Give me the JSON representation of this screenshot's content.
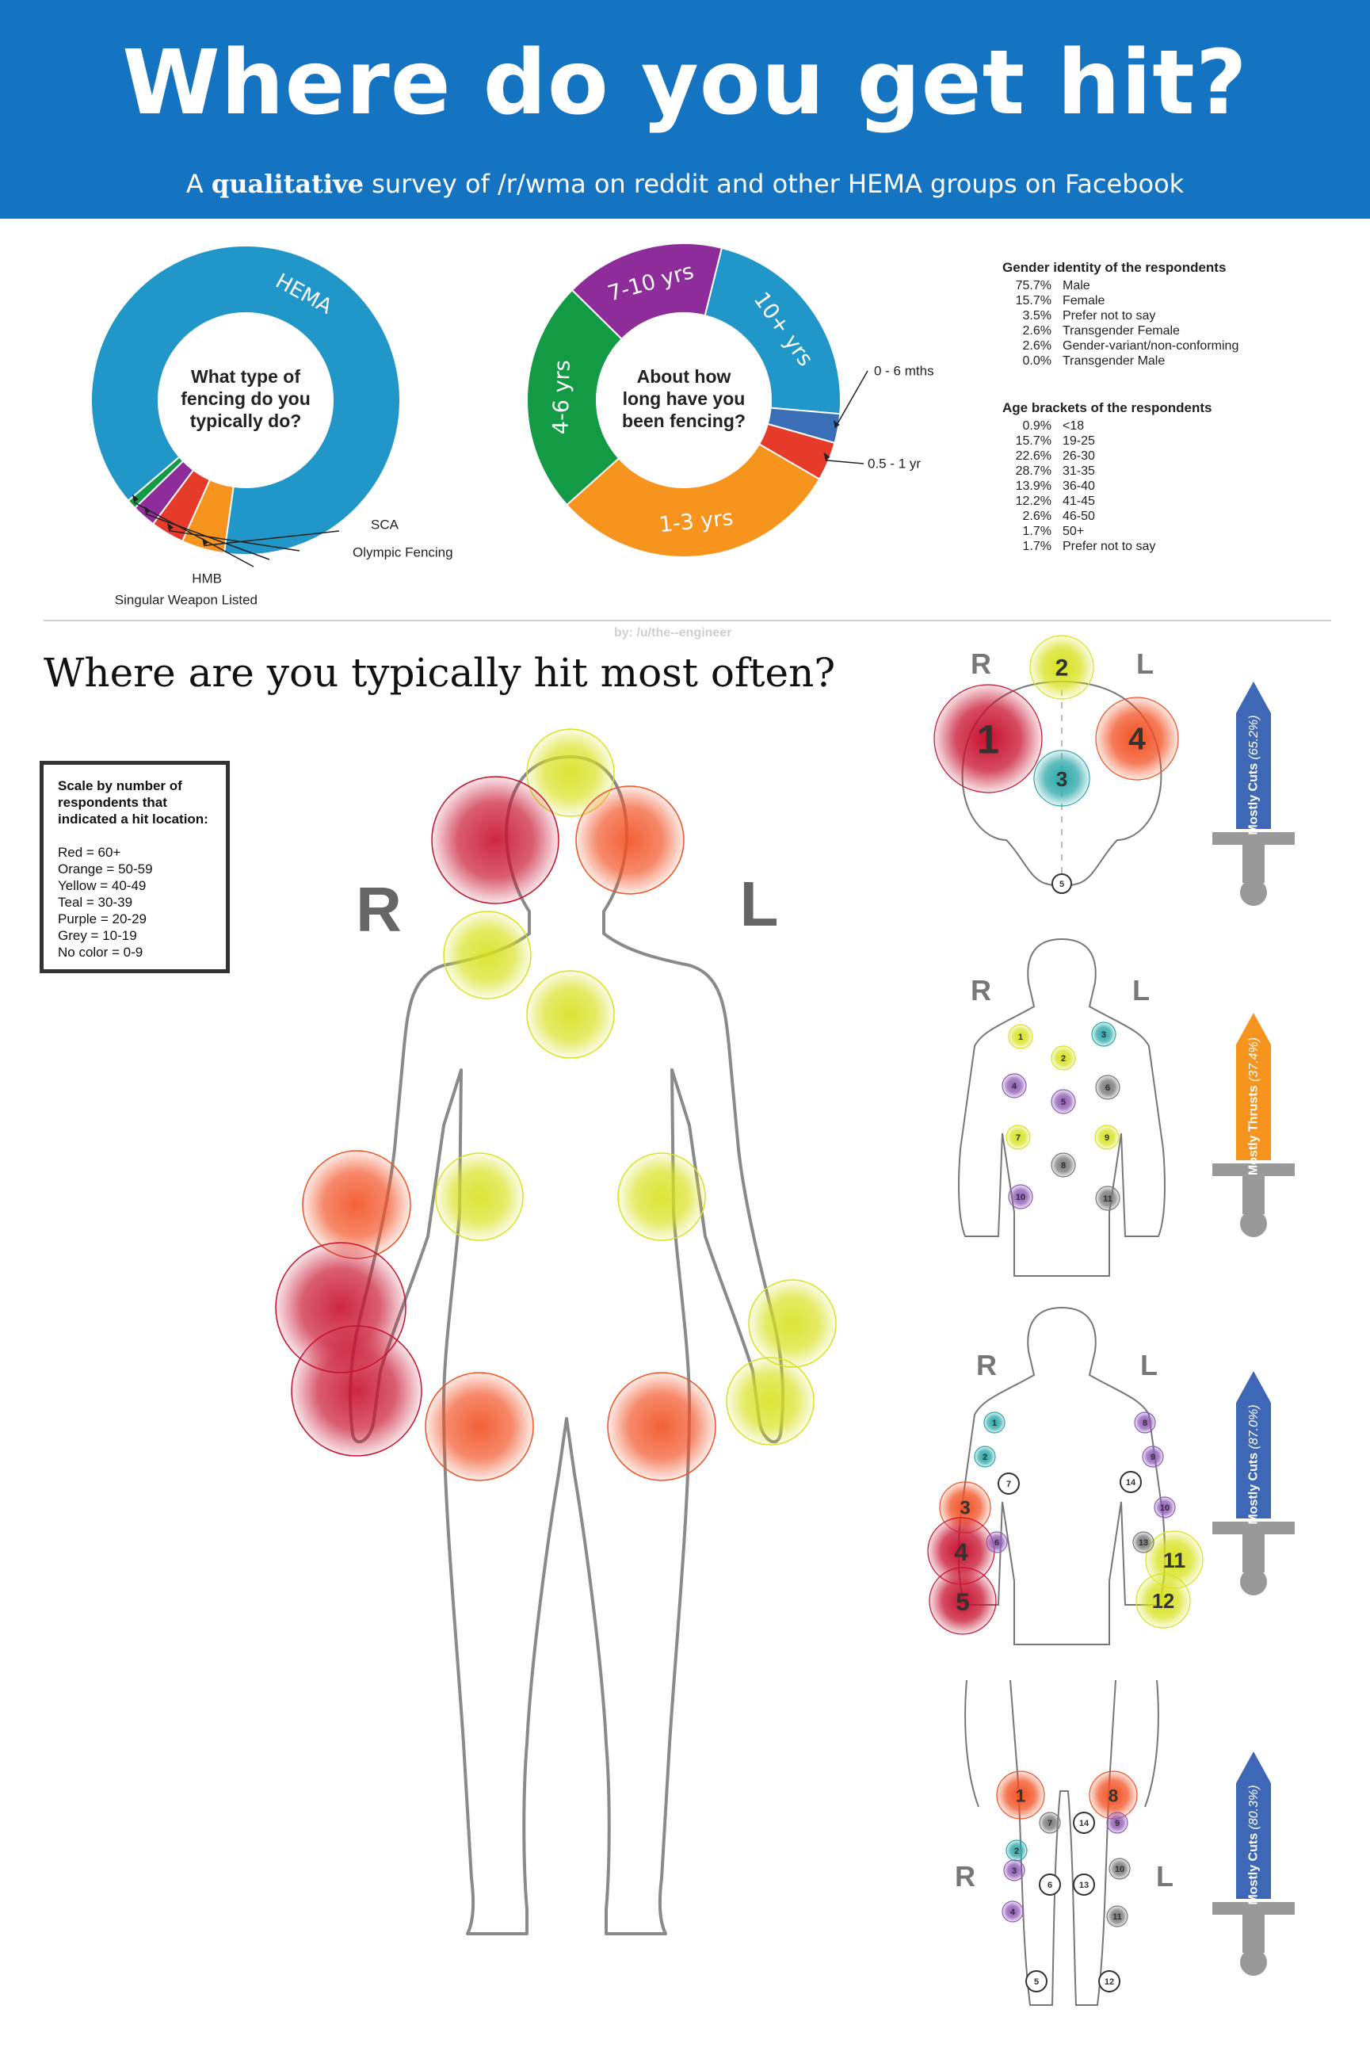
{
  "header": {
    "title": "Where do you get hit?",
    "subtitle_prefix": "A ",
    "subtitle_emphasis": "qualitative",
    "subtitle_rest": " survey of /r/wma on reddit and other HEMA groups on Facebook",
    "color": "#1574c2"
  },
  "chart_data": [
    {
      "type": "pie",
      "variant": "donut",
      "center_label": [
        "What type of",
        "fencing do you",
        "typically do?"
      ],
      "slices": [
        {
          "label": "HEMA",
          "value": 88.5,
          "color": "#2196c8"
        },
        {
          "label": "SCA",
          "value": 4.5,
          "color": "#f7941d"
        },
        {
          "label": "Olympic Fencing",
          "value": 3.5,
          "color": "#e63a2a"
        },
        {
          "label": "Singular Weapon Listed",
          "value": 2.5,
          "color": "#8e2c9a"
        },
        {
          "label": "HMB",
          "value": 1.0,
          "color": "#139a45"
        }
      ]
    },
    {
      "type": "pie",
      "variant": "donut",
      "center_label": [
        "About how",
        "long have you",
        "been fencing?"
      ],
      "slices": [
        {
          "label": "10+ yrs",
          "value": 22.5,
          "color": "#2196c8"
        },
        {
          "label": "0 - 6 mths",
          "value": 3.0,
          "color": "#3a6fb7"
        },
        {
          "label": "0.5 - 1 yr",
          "value": 4.0,
          "color": "#e63a2a"
        },
        {
          "label": "1-3 yrs",
          "value": 30.0,
          "color": "#f7941d"
        },
        {
          "label": "4-6 yrs",
          "value": 24.0,
          "color": "#139a45"
        },
        {
          "label": "7-10 yrs",
          "value": 16.5,
          "color": "#8e2c9a"
        }
      ]
    },
    {
      "type": "table",
      "title": "Gender identity of the respondents",
      "rows": [
        {
          "pct": "75.7%",
          "label": "Male"
        },
        {
          "pct": "15.7%",
          "label": "Female"
        },
        {
          "pct": "3.5%",
          "label": "Prefer not to say"
        },
        {
          "pct": "2.6%",
          "label": "Transgender Female"
        },
        {
          "pct": "2.6%",
          "label": "Gender-variant/non-conforming"
        },
        {
          "pct": "0.0%",
          "label": "Transgender Male"
        }
      ]
    },
    {
      "type": "table",
      "title": "Age brackets of the respondents",
      "rows": [
        {
          "pct": "0.9%",
          "label": "<18"
        },
        {
          "pct": "15.7%",
          "label": "19-25"
        },
        {
          "pct": "22.6%",
          "label": "26-30"
        },
        {
          "pct": "28.7%",
          "label": "31-35"
        },
        {
          "pct": "13.9%",
          "label": "36-40"
        },
        {
          "pct": "12.2%",
          "label": "41-45"
        },
        {
          "pct": "2.6%",
          "label": "46-50"
        },
        {
          "pct": "1.7%",
          "label": "50+"
        },
        {
          "pct": "1.7%",
          "label": "Prefer not to say"
        }
      ]
    },
    {
      "type": "heatmap",
      "title": "Where are you typically hit most often?",
      "side_labels": {
        "right": "R",
        "left": "L"
      },
      "scale": {
        "title": "Scale by number of respondents that indicated a hit location:",
        "entries": [
          "Red = 60+",
          "Orange = 50-59",
          "Yellow = 40-49",
          "Teal = 30-39",
          "Purple = 20-29",
          "Grey = 10-19",
          "No color = 0-9"
        ]
      },
      "spots": [
        {
          "location": "top of head",
          "category": "yellow"
        },
        {
          "location": "right side of head",
          "category": "red"
        },
        {
          "location": "left side of head",
          "category": "orange"
        },
        {
          "location": "right shoulder",
          "category": "yellow"
        },
        {
          "location": "chest",
          "category": "yellow"
        },
        {
          "location": "right upper arm",
          "category": "orange"
        },
        {
          "location": "right forearm",
          "category": "red"
        },
        {
          "location": "right hand",
          "category": "red"
        },
        {
          "location": "right flank",
          "category": "yellow"
        },
        {
          "location": "left flank",
          "category": "yellow"
        },
        {
          "location": "left forearm",
          "category": "yellow"
        },
        {
          "location": "left hand",
          "category": "yellow"
        },
        {
          "location": "right thigh",
          "category": "orange"
        },
        {
          "location": "left thigh",
          "category": "orange"
        }
      ]
    }
  ],
  "detail_panels": [
    {
      "r": "R",
      "l": "L",
      "weapon_label": "Mostly Cuts",
      "weapon_pct": "(65.2%)",
      "weapon_color": "#3e68b6"
    },
    {
      "r": "R",
      "l": "L",
      "weapon_label": "Mostly Thrusts",
      "weapon_pct": "(37.4%)",
      "weapon_color": "#f7941d"
    },
    {
      "r": "R",
      "l": "L",
      "weapon_label": "Mostly Cuts",
      "weapon_pct": "(87.0%)",
      "weapon_color": "#3e68b6"
    },
    {
      "r": "R",
      "l": "L",
      "weapon_label": "Mostly Cuts",
      "weapon_pct": "(80.3%)",
      "weapon_color": "#3e68b6"
    }
  ],
  "credit": "by: /u/the--engineer",
  "colors": {
    "red": "#c8102e",
    "orange": "#f25022",
    "yellow": "#d8e21e",
    "teal": "#2aa7a8",
    "purple": "#8e5bb5",
    "grey": "#777777"
  }
}
